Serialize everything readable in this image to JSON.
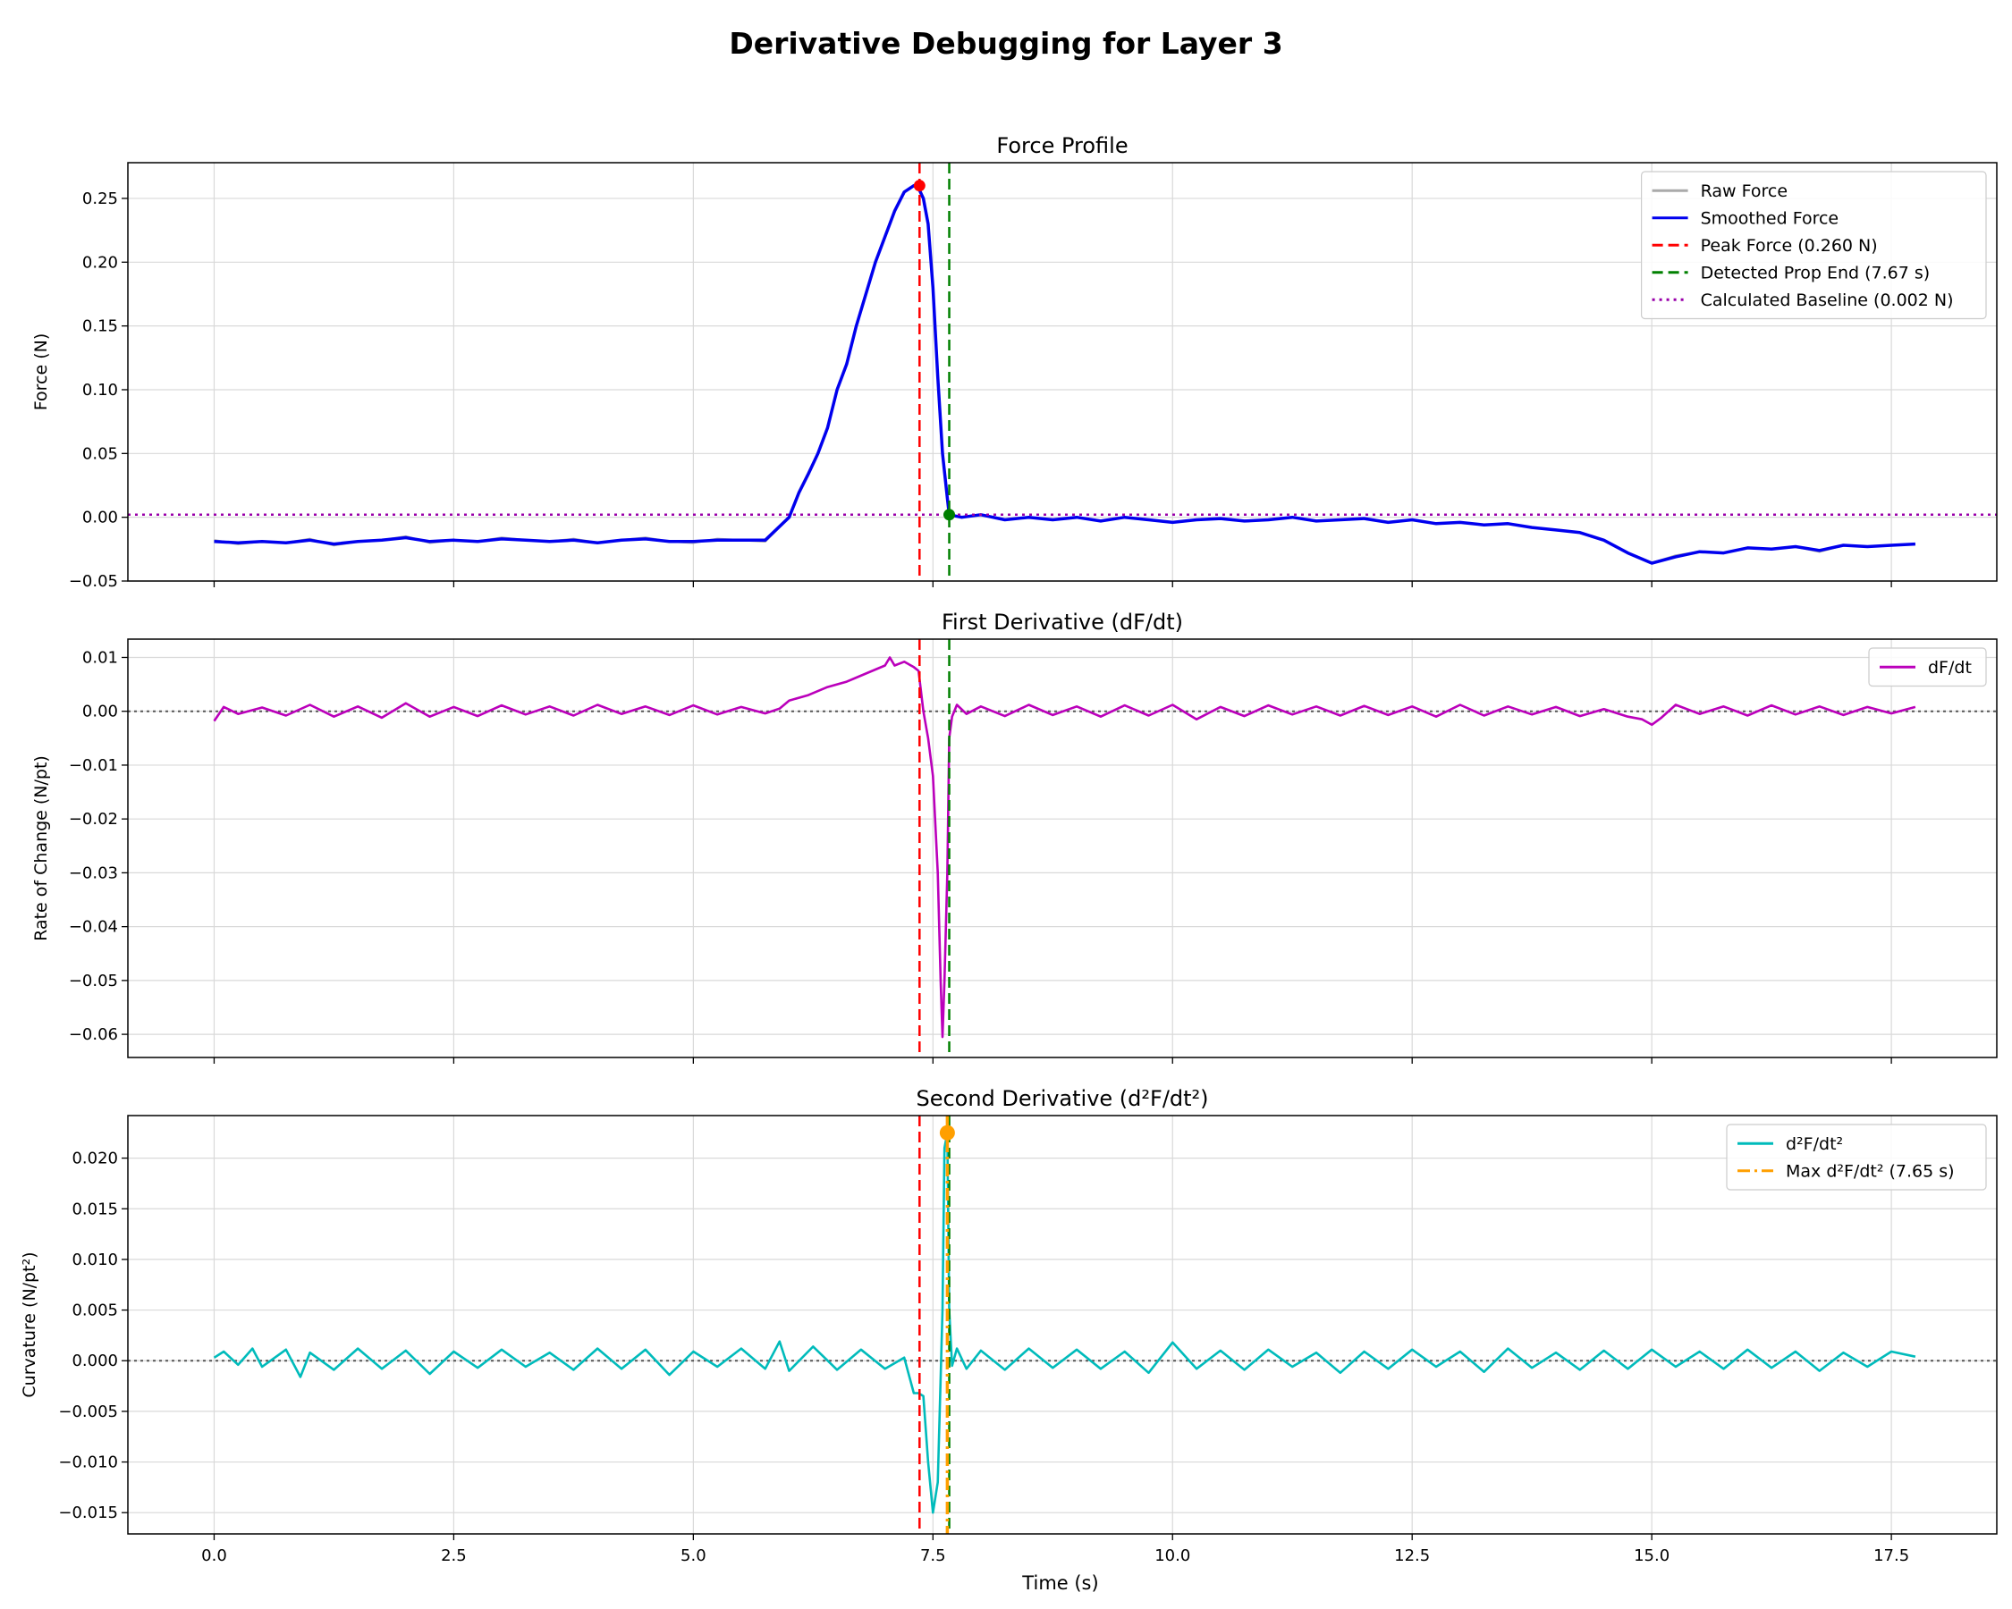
{
  "figure": {
    "title": "Derivative Debugging for Layer 3",
    "xlabel": "Time (s)"
  },
  "chart_data": [
    {
      "type": "line",
      "title": "Force Profile",
      "ylabel": "Force (N)",
      "xlim": [
        -0.9,
        18.6
      ],
      "ylim": [
        -0.05,
        0.278
      ],
      "xticks": [
        0.0,
        2.5,
        5.0,
        7.5,
        10.0,
        12.5,
        15.0,
        17.5
      ],
      "xtick_labels": [
        "0.0",
        "2.5",
        "5.0",
        "7.5",
        "10.0",
        "12.5",
        "15.0",
        "17.5"
      ],
      "yticks": [
        -0.05,
        0.0,
        0.05,
        0.1,
        0.15,
        0.2,
        0.25
      ],
      "ytick_labels": [
        "−0.05",
        "0.00",
        "0.05",
        "0.10",
        "0.15",
        "0.20",
        "0.25"
      ],
      "show_xtick_labels": false,
      "grid": true,
      "legend_position": "top-right",
      "series": [
        {
          "name": "Raw Force",
          "color": "#aaaaaa",
          "x": [
            0.0,
            0.25,
            0.5,
            0.75,
            1.0,
            1.25,
            1.5,
            1.75,
            2.0,
            2.25,
            2.5,
            2.75,
            3.0,
            3.25,
            3.5,
            3.75,
            4.0,
            4.25,
            4.5,
            4.75,
            5.0,
            5.25,
            5.5,
            5.75,
            6.0,
            6.1,
            6.2,
            6.3,
            6.4,
            6.5,
            6.6,
            6.7,
            6.8,
            6.9,
            7.0,
            7.1,
            7.2,
            7.3,
            7.35,
            7.4,
            7.45,
            7.5,
            7.55,
            7.6,
            7.65,
            7.67,
            7.8,
            8.0,
            8.25,
            8.5,
            8.75,
            9.0,
            9.25,
            9.5,
            9.75,
            10.0,
            10.25,
            10.5,
            10.75,
            11.0,
            11.25,
            11.5,
            11.75,
            12.0,
            12.25,
            12.5,
            12.75,
            13.0,
            13.25,
            13.5,
            13.75,
            14.0,
            14.25,
            14.5,
            14.75,
            15.0,
            15.25,
            15.5,
            15.75,
            16.0,
            16.25,
            16.5,
            16.75,
            17.0,
            17.25,
            17.5,
            17.75
          ],
          "y": [
            -0.018,
            -0.021,
            -0.019,
            -0.02,
            -0.017,
            -0.022,
            -0.019,
            -0.018,
            -0.015,
            -0.02,
            -0.018,
            -0.019,
            -0.016,
            -0.018,
            -0.019,
            -0.017,
            -0.02,
            -0.018,
            -0.016,
            -0.019,
            -0.02,
            -0.017,
            -0.018,
            -0.019,
            0.0,
            0.02,
            0.035,
            0.05,
            0.07,
            0.1,
            0.12,
            0.15,
            0.175,
            0.2,
            0.22,
            0.24,
            0.255,
            0.26,
            0.258,
            0.25,
            0.23,
            0.18,
            0.11,
            0.05,
            0.015,
            0.002,
            0.0,
            0.002,
            -0.002,
            0.0,
            -0.002,
            0.0,
            -0.003,
            0.0,
            -0.002,
            -0.004,
            -0.002,
            -0.001,
            -0.003,
            -0.002,
            0.0,
            -0.003,
            -0.002,
            -0.001,
            -0.004,
            -0.002,
            -0.005,
            -0.004,
            -0.006,
            -0.005,
            -0.008,
            -0.01,
            -0.012,
            -0.018,
            -0.028,
            -0.036,
            -0.03,
            -0.027,
            -0.028,
            -0.024,
            -0.025,
            -0.023,
            -0.027,
            -0.022,
            -0.023,
            -0.022,
            -0.021
          ]
        },
        {
          "name": "Smoothed Force",
          "color": "#0000ee",
          "x": [
            0.0,
            0.25,
            0.5,
            0.75,
            1.0,
            1.25,
            1.5,
            1.75,
            2.0,
            2.25,
            2.5,
            2.75,
            3.0,
            3.25,
            3.5,
            3.75,
            4.0,
            4.25,
            4.5,
            4.75,
            5.0,
            5.25,
            5.5,
            5.75,
            6.0,
            6.1,
            6.2,
            6.3,
            6.4,
            6.5,
            6.6,
            6.7,
            6.8,
            6.9,
            7.0,
            7.1,
            7.2,
            7.3,
            7.35,
            7.4,
            7.45,
            7.5,
            7.55,
            7.6,
            7.65,
            7.67,
            7.8,
            8.0,
            8.25,
            8.5,
            8.75,
            9.0,
            9.25,
            9.5,
            9.75,
            10.0,
            10.25,
            10.5,
            10.75,
            11.0,
            11.25,
            11.5,
            11.75,
            12.0,
            12.25,
            12.5,
            12.75,
            13.0,
            13.25,
            13.5,
            13.75,
            14.0,
            14.25,
            14.5,
            14.75,
            15.0,
            15.25,
            15.5,
            15.75,
            16.0,
            16.25,
            16.5,
            16.75,
            17.0,
            17.25,
            17.5,
            17.75
          ],
          "y": [
            -0.019,
            -0.02,
            -0.019,
            -0.02,
            -0.018,
            -0.021,
            -0.019,
            -0.018,
            -0.016,
            -0.019,
            -0.018,
            -0.019,
            -0.017,
            -0.018,
            -0.019,
            -0.018,
            -0.02,
            -0.018,
            -0.017,
            -0.019,
            -0.019,
            -0.018,
            -0.018,
            -0.018,
            0.0,
            0.019,
            0.034,
            0.05,
            0.07,
            0.1,
            0.12,
            0.15,
            0.175,
            0.2,
            0.22,
            0.24,
            0.255,
            0.26,
            0.258,
            0.25,
            0.23,
            0.18,
            0.11,
            0.05,
            0.015,
            0.002,
            0.0,
            0.002,
            -0.002,
            0.0,
            -0.002,
            0.0,
            -0.003,
            0.0,
            -0.002,
            -0.004,
            -0.002,
            -0.001,
            -0.003,
            -0.002,
            0.0,
            -0.003,
            -0.002,
            -0.001,
            -0.004,
            -0.002,
            -0.005,
            -0.004,
            -0.006,
            -0.005,
            -0.008,
            -0.01,
            -0.012,
            -0.018,
            -0.028,
            -0.036,
            -0.031,
            -0.027,
            -0.028,
            -0.024,
            -0.025,
            -0.023,
            -0.026,
            -0.022,
            -0.023,
            -0.022,
            -0.021
          ]
        }
      ],
      "reference_lines": [
        {
          "name": "Peak Force (0.260 N)",
          "orientation": "vertical",
          "value": 7.36,
          "color": "#ff0000",
          "style": "dashed"
        },
        {
          "name": "Detected Prop End (7.67 s)",
          "orientation": "vertical",
          "value": 7.67,
          "color": "#008000",
          "style": "dashed"
        },
        {
          "name": "Calculated Baseline (0.002 N)",
          "orientation": "horizontal",
          "value": 0.002,
          "color": "#9900aa",
          "style": "dotted"
        }
      ],
      "markers": [
        {
          "x": 7.36,
          "y": 0.26,
          "color": "#ff0000"
        },
        {
          "x": 7.67,
          "y": 0.002,
          "color": "#008000"
        }
      ],
      "zero_line": false
    },
    {
      "type": "line",
      "title": "First Derivative (dF/dt)",
      "ylabel": "Rate of Change (N/pt)",
      "xlim": [
        -0.9,
        18.6
      ],
      "ylim": [
        -0.0643,
        0.0134
      ],
      "xticks": [
        0.0,
        2.5,
        5.0,
        7.5,
        10.0,
        12.5,
        15.0,
        17.5
      ],
      "xtick_labels": [
        "0.0",
        "2.5",
        "5.0",
        "7.5",
        "10.0",
        "12.5",
        "15.0",
        "17.5"
      ],
      "yticks": [
        -0.06,
        -0.05,
        -0.04,
        -0.03,
        -0.02,
        -0.01,
        0.0,
        0.01
      ],
      "ytick_labels": [
        "−0.06",
        "−0.05",
        "−0.04",
        "−0.03",
        "−0.02",
        "−0.01",
        "0.00",
        "0.01"
      ],
      "show_xtick_labels": false,
      "grid": true,
      "legend_position": "top-right",
      "series": [
        {
          "name": "dF/dt",
          "color": "#bb00bb",
          "x": [
            0.0,
            0.1,
            0.25,
            0.5,
            0.75,
            1.0,
            1.25,
            1.5,
            1.75,
            2.0,
            2.25,
            2.5,
            2.75,
            3.0,
            3.25,
            3.5,
            3.75,
            4.0,
            4.25,
            4.5,
            4.75,
            5.0,
            5.25,
            5.5,
            5.75,
            5.9,
            6.0,
            6.2,
            6.4,
            6.6,
            6.8,
            7.0,
            7.05,
            7.1,
            7.2,
            7.3,
            7.35,
            7.4,
            7.45,
            7.5,
            7.55,
            7.58,
            7.6,
            7.62,
            7.65,
            7.67,
            7.7,
            7.75,
            7.85,
            8.0,
            8.25,
            8.5,
            8.75,
            9.0,
            9.25,
            9.5,
            9.75,
            10.0,
            10.25,
            10.5,
            10.75,
            11.0,
            11.25,
            11.5,
            11.75,
            12.0,
            12.25,
            12.5,
            12.75,
            13.0,
            13.25,
            13.5,
            13.75,
            14.0,
            14.25,
            14.5,
            14.75,
            14.9,
            15.0,
            15.1,
            15.25,
            15.5,
            15.75,
            16.0,
            16.25,
            16.5,
            16.75,
            17.0,
            17.25,
            17.5,
            17.75
          ],
          "y": [
            -0.0018,
            0.0008,
            -0.0005,
            0.0007,
            -0.0008,
            0.0012,
            -0.001,
            0.0009,
            -0.0012,
            0.0015,
            -0.001,
            0.0008,
            -0.0009,
            0.0011,
            -0.0006,
            0.0009,
            -0.0008,
            0.0012,
            -0.0005,
            0.0009,
            -0.0007,
            0.0011,
            -0.0006,
            0.0008,
            -0.0004,
            0.0005,
            0.002,
            0.003,
            0.0045,
            0.0055,
            0.007,
            0.0085,
            0.01,
            0.0085,
            0.0092,
            0.0082,
            0.0075,
            0.0,
            -0.005,
            -0.012,
            -0.03,
            -0.05,
            -0.0605,
            -0.05,
            -0.03,
            -0.005,
            -0.001,
            0.0012,
            -0.0005,
            0.0009,
            -0.0009,
            0.0012,
            -0.0007,
            0.0009,
            -0.001,
            0.0011,
            -0.0008,
            0.0012,
            -0.0015,
            0.0008,
            -0.0009,
            0.0011,
            -0.0006,
            0.0009,
            -0.0008,
            0.001,
            -0.0007,
            0.0009,
            -0.001,
            0.0012,
            -0.0008,
            0.0009,
            -0.0006,
            0.0008,
            -0.0009,
            0.0004,
            -0.001,
            -0.0015,
            -0.0025,
            -0.0012,
            0.0012,
            -0.0005,
            0.0009,
            -0.0008,
            0.0011,
            -0.0006,
            0.0009,
            -0.0007,
            0.0008,
            -0.0004,
            0.0008
          ]
        }
      ],
      "reference_lines": [
        {
          "orientation": "vertical",
          "value": 7.36,
          "color": "#ff0000",
          "style": "dashed"
        },
        {
          "orientation": "vertical",
          "value": 7.67,
          "color": "#008000",
          "style": "dashed"
        }
      ],
      "markers": [],
      "zero_line": true
    },
    {
      "type": "line",
      "title": "Second Derivative (d²F/dt²)",
      "ylabel": "Curvature (N/pt²)",
      "xlim": [
        -0.9,
        18.6
      ],
      "ylim": [
        -0.0171,
        0.0242
      ],
      "xticks": [
        0.0,
        2.5,
        5.0,
        7.5,
        10.0,
        12.5,
        15.0,
        17.5
      ],
      "xtick_labels": [
        "0.0",
        "2.5",
        "5.0",
        "7.5",
        "10.0",
        "12.5",
        "15.0",
        "17.5"
      ],
      "yticks": [
        -0.015,
        -0.01,
        -0.005,
        0.0,
        0.005,
        0.01,
        0.015,
        0.02
      ],
      "ytick_labels": [
        "−0.015",
        "−0.010",
        "−0.005",
        "0.000",
        "0.005",
        "0.010",
        "0.015",
        "0.020"
      ],
      "show_xtick_labels": true,
      "grid": true,
      "legend_position": "top-right",
      "series": [
        {
          "name": "d²F/dt²",
          "color": "#00bbbb",
          "x": [
            0.0,
            0.1,
            0.25,
            0.4,
            0.5,
            0.75,
            0.9,
            1.0,
            1.25,
            1.5,
            1.75,
            2.0,
            2.25,
            2.5,
            2.75,
            3.0,
            3.25,
            3.5,
            3.75,
            4.0,
            4.25,
            4.5,
            4.75,
            5.0,
            5.25,
            5.5,
            5.75,
            5.9,
            6.0,
            6.25,
            6.5,
            6.75,
            7.0,
            7.2,
            7.3,
            7.35,
            7.4,
            7.45,
            7.5,
            7.55,
            7.6,
            7.62,
            7.65,
            7.67,
            7.7,
            7.75,
            7.85,
            8.0,
            8.25,
            8.5,
            8.75,
            9.0,
            9.25,
            9.5,
            9.75,
            10.0,
            10.25,
            10.5,
            10.75,
            11.0,
            11.25,
            11.5,
            11.75,
            12.0,
            12.25,
            12.5,
            12.75,
            13.0,
            13.25,
            13.5,
            13.75,
            14.0,
            14.25,
            14.5,
            14.75,
            15.0,
            15.25,
            15.5,
            15.75,
            16.0,
            16.25,
            16.5,
            16.75,
            17.0,
            17.25,
            17.5,
            17.75
          ],
          "y": [
            0.0003,
            0.0009,
            -0.0004,
            0.0012,
            -0.0006,
            0.0011,
            -0.0016,
            0.0008,
            -0.0009,
            0.0012,
            -0.0008,
            0.001,
            -0.0013,
            0.0009,
            -0.0007,
            0.0011,
            -0.0006,
            0.0008,
            -0.0009,
            0.0012,
            -0.0008,
            0.0011,
            -0.0014,
            0.0009,
            -0.0006,
            0.0012,
            -0.0008,
            0.0019,
            -0.001,
            0.0014,
            -0.0009,
            0.0011,
            -0.0008,
            0.0003,
            -0.0032,
            -0.0032,
            -0.0035,
            -0.01,
            -0.015,
            -0.012,
            0.005,
            0.021,
            0.0225,
            0.005,
            -0.0005,
            0.0012,
            -0.0008,
            0.001,
            -0.0009,
            0.0012,
            -0.0007,
            0.0011,
            -0.0008,
            0.0009,
            -0.0012,
            0.0018,
            -0.0008,
            0.001,
            -0.0009,
            0.0011,
            -0.0006,
            0.0008,
            -0.0012,
            0.0009,
            -0.0008,
            0.0011,
            -0.0006,
            0.0009,
            -0.0011,
            0.0012,
            -0.0007,
            0.0008,
            -0.0009,
            0.001,
            -0.0008,
            0.0011,
            -0.0006,
            0.0009,
            -0.0008,
            0.0011,
            -0.0007,
            0.0009,
            -0.001,
            0.0008,
            -0.0006,
            0.0009,
            0.0004
          ]
        }
      ],
      "reference_lines": [
        {
          "orientation": "vertical",
          "value": 7.36,
          "color": "#ff0000",
          "style": "dashed"
        },
        {
          "orientation": "vertical",
          "value": 7.67,
          "color": "#008000",
          "style": "dashed"
        },
        {
          "name": "Max d²F/dt² (7.65 s)",
          "orientation": "vertical",
          "value": 7.65,
          "color": "#ff9f00",
          "style": "dashdot"
        }
      ],
      "markers": [
        {
          "x": 7.65,
          "y": 0.0225,
          "color": "#ff9f00"
        }
      ],
      "zero_line": true
    }
  ]
}
